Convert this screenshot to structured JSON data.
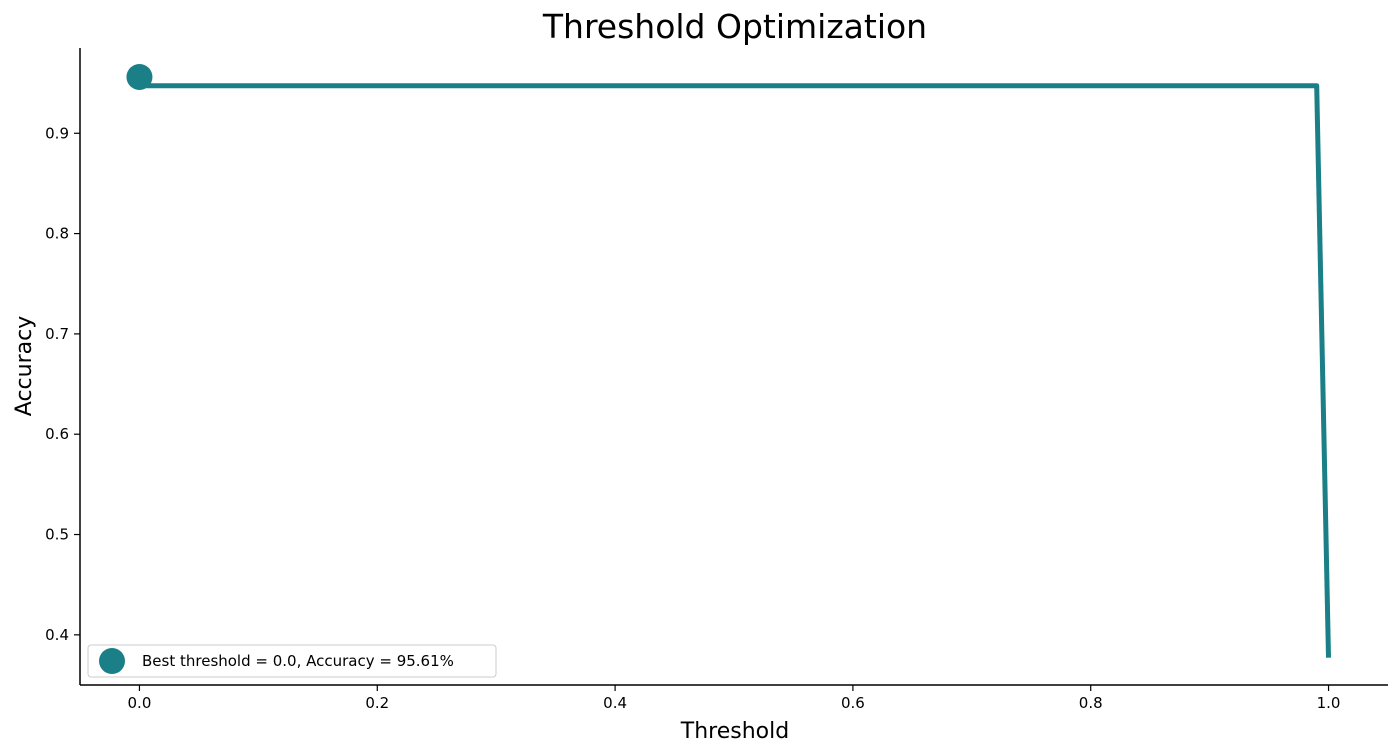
{
  "chart_data": {
    "type": "line",
    "title": "Threshold Optimization",
    "xlabel": "Threshold",
    "ylabel": "Accuracy",
    "xlim": [
      -0.05,
      1.05
    ],
    "ylim": [
      0.35,
      0.985
    ],
    "x_ticks": [
      0.0,
      0.2,
      0.4,
      0.6,
      0.8,
      1.0
    ],
    "x_tick_labels": [
      "0.0",
      "0.2",
      "0.4",
      "0.6",
      "0.8",
      "1.0"
    ],
    "y_ticks": [
      0.4,
      0.5,
      0.6,
      0.7,
      0.8,
      0.9
    ],
    "y_tick_labels": [
      "0.4",
      "0.5",
      "0.6",
      "0.7",
      "0.8",
      "0.9"
    ],
    "grid": false,
    "legend_position": "bottom-left",
    "series": [
      {
        "kind": "line",
        "x": [
          0.0,
          0.99,
          1.0
        ],
        "y": [
          0.9474,
          0.9474,
          0.3772
        ],
        "color": "#1a7f86"
      },
      {
        "kind": "scatter",
        "name": "Best threshold = 0.0, Accuracy = 95.61%",
        "x": [
          0.0
        ],
        "y": [
          0.9561
        ],
        "color": "#1a7f86"
      }
    ]
  }
}
